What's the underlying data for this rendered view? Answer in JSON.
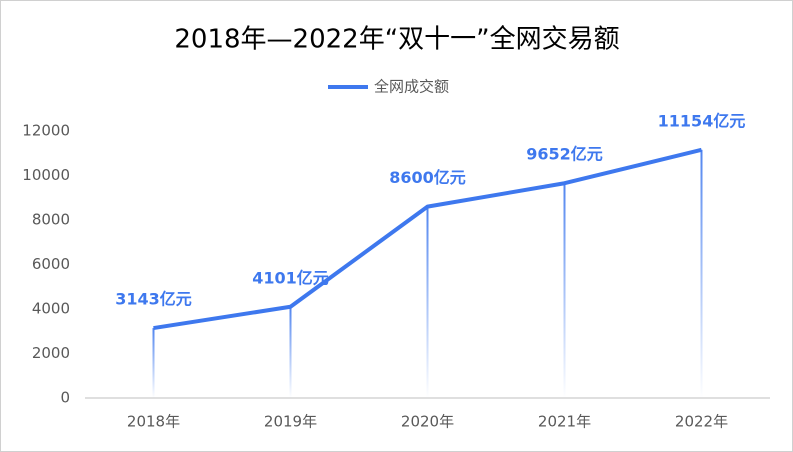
{
  "chart_data": {
    "type": "line",
    "title": "2018年—2022年“双十一”全网交易额",
    "categories": [
      "2018年",
      "2019年",
      "2020年",
      "2021年",
      "2022年"
    ],
    "series": [
      {
        "name": "全网成交额",
        "color": "#3e78ee",
        "values": [
          3143,
          4101,
          8600,
          9652,
          11154
        ],
        "value_labels": [
          "3143亿元",
          "4101亿元",
          "8600亿元",
          "9652亿元",
          "11154亿元"
        ]
      }
    ],
    "ylim": [
      0,
      12000
    ],
    "yticks": [
      0,
      2000,
      4000,
      6000,
      8000,
      10000,
      12000
    ],
    "grid": false,
    "legend": "top",
    "drop_lines": true
  }
}
